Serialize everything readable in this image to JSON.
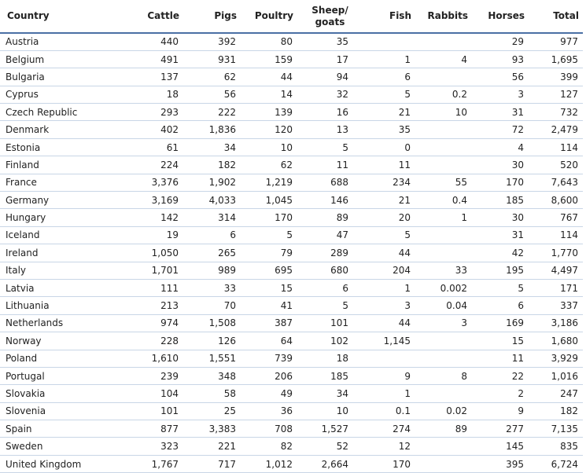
{
  "table": {
    "headers": {
      "country": "Country",
      "cattle": "Cattle",
      "pigs": "Pigs",
      "poultry": "Poultry",
      "sheep_line1": "Sheep/",
      "sheep_line2": "goats",
      "fish": "Fish",
      "rabbits": "Rabbits",
      "horses": "Horses",
      "total": "Total"
    },
    "rows": [
      {
        "country": "Austria",
        "cattle": "440",
        "pigs": "392",
        "poultry": "80",
        "sheep": "35",
        "fish": "",
        "rabbits": "",
        "horses": "29",
        "total": "977"
      },
      {
        "country": "Belgium",
        "cattle": "491",
        "pigs": "931",
        "poultry": "159",
        "sheep": "17",
        "fish": "1",
        "rabbits": "4",
        "horses": "93",
        "total": "1,695"
      },
      {
        "country": "Bulgaria",
        "cattle": "137",
        "pigs": "62",
        "poultry": "44",
        "sheep": "94",
        "fish": "6",
        "rabbits": "",
        "horses": "56",
        "total": "399"
      },
      {
        "country": "Cyprus",
        "cattle": "18",
        "pigs": "56",
        "poultry": "14",
        "sheep": "32",
        "fish": "5",
        "rabbits": "0.2",
        "horses": "3",
        "total": "127"
      },
      {
        "country": "Czech Republic",
        "cattle": "293",
        "pigs": "222",
        "poultry": "139",
        "sheep": "16",
        "fish": "21",
        "rabbits": "10",
        "horses": "31",
        "total": "732"
      },
      {
        "country": "Denmark",
        "cattle": "402",
        "pigs": "1,836",
        "poultry": "120",
        "sheep": "13",
        "fish": "35",
        "rabbits": "",
        "horses": "72",
        "total": "2,479"
      },
      {
        "country": "Estonia",
        "cattle": "61",
        "pigs": "34",
        "poultry": "10",
        "sheep": "5",
        "fish": "0",
        "rabbits": "",
        "horses": "4",
        "total": "114"
      },
      {
        "country": "Finland",
        "cattle": "224",
        "pigs": "182",
        "poultry": "62",
        "sheep": "11",
        "fish": "11",
        "rabbits": "",
        "horses": "30",
        "total": "520"
      },
      {
        "country": "France",
        "cattle": "3,376",
        "pigs": "1,902",
        "poultry": "1,219",
        "sheep": "688",
        "fish": "234",
        "rabbits": "55",
        "horses": "170",
        "total": "7,643"
      },
      {
        "country": "Germany",
        "cattle": "3,169",
        "pigs": "4,033",
        "poultry": "1,045",
        "sheep": "146",
        "fish": "21",
        "rabbits": "0.4",
        "horses": "185",
        "total": "8,600"
      },
      {
        "country": "Hungary",
        "cattle": "142",
        "pigs": "314",
        "poultry": "170",
        "sheep": "89",
        "fish": "20",
        "rabbits": "1",
        "horses": "30",
        "total": "767"
      },
      {
        "country": "Iceland",
        "cattle": "19",
        "pigs": "6",
        "poultry": "5",
        "sheep": "47",
        "fish": "5",
        "rabbits": "",
        "horses": "31",
        "total": "114"
      },
      {
        "country": "Ireland",
        "cattle": "1,050",
        "pigs": "265",
        "poultry": "79",
        "sheep": "289",
        "fish": "44",
        "rabbits": "",
        "horses": "42",
        "total": "1,770"
      },
      {
        "country": "Italy",
        "cattle": "1,701",
        "pigs": "989",
        "poultry": "695",
        "sheep": "680",
        "fish": "204",
        "rabbits": "33",
        "horses": "195",
        "total": "4,497"
      },
      {
        "country": "Latvia",
        "cattle": "111",
        "pigs": "33",
        "poultry": "15",
        "sheep": "6",
        "fish": "1",
        "rabbits": "0.002",
        "horses": "5",
        "total": "171"
      },
      {
        "country": "Lithuania",
        "cattle": "213",
        "pigs": "70",
        "poultry": "41",
        "sheep": "5",
        "fish": "3",
        "rabbits": "0.04",
        "horses": "6",
        "total": "337"
      },
      {
        "country": "Netherlands",
        "cattle": "974",
        "pigs": "1,508",
        "poultry": "387",
        "sheep": "101",
        "fish": "44",
        "rabbits": "3",
        "horses": "169",
        "total": "3,186"
      },
      {
        "country": "Norway",
        "cattle": "228",
        "pigs": "126",
        "poultry": "64",
        "sheep": "102",
        "fish": "1,145",
        "rabbits": "",
        "horses": "15",
        "total": "1,680"
      },
      {
        "country": "Poland",
        "cattle": "1,610",
        "pigs": "1,551",
        "poultry": "739",
        "sheep": "18",
        "fish": "",
        "rabbits": "",
        "horses": "11",
        "total": "3,929"
      },
      {
        "country": "Portugal",
        "cattle": "239",
        "pigs": "348",
        "poultry": "206",
        "sheep": "185",
        "fish": "9",
        "rabbits": "8",
        "horses": "22",
        "total": "1,016"
      },
      {
        "country": "Slovakia",
        "cattle": "104",
        "pigs": "58",
        "poultry": "49",
        "sheep": "34",
        "fish": "1",
        "rabbits": "",
        "horses": "2",
        "total": "247"
      },
      {
        "country": "Slovenia",
        "cattle": "101",
        "pigs": "25",
        "poultry": "36",
        "sheep": "10",
        "fish": "0.1",
        "rabbits": "0.02",
        "horses": "9",
        "total": "182"
      },
      {
        "country": "Spain",
        "cattle": "877",
        "pigs": "3,383",
        "poultry": "708",
        "sheep": "1,527",
        "fish": "274",
        "rabbits": "89",
        "horses": "277",
        "total": "7,135"
      },
      {
        "country": "Sweden",
        "cattle": "323",
        "pigs": "221",
        "poultry": "82",
        "sheep": "52",
        "fish": "12",
        "rabbits": "",
        "horses": "145",
        "total": "835"
      },
      {
        "country": "United Kingdom",
        "cattle": "1,767",
        "pigs": "717",
        "poultry": "1,012",
        "sheep": "2,664",
        "fish": "170",
        "rabbits": "",
        "horses": "395",
        "total": "6,724"
      }
    ]
  },
  "colors": {
    "header_rule": "#4a6fa5",
    "row_rule": "#c9d6e6",
    "text": "#222222"
  }
}
